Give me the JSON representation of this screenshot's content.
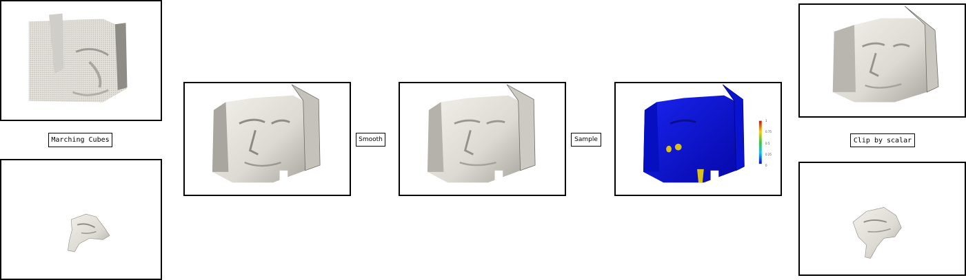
{
  "labels": {
    "marching_cubes": "Marching Cubes",
    "smooth": "Smooth",
    "sample": "Sample",
    "clip_by_scalar": "Clip by scalar"
  },
  "colorbar": {
    "ticks": [
      "1",
      "0.75",
      "0.5",
      "0.25",
      "0"
    ]
  },
  "colors": {
    "surface": "#dcdad3",
    "surface_shadow": "#9a988f",
    "scalar_blue": "#0a12d8",
    "scalar_yellow": "#d8c21a",
    "border": "#000000"
  }
}
